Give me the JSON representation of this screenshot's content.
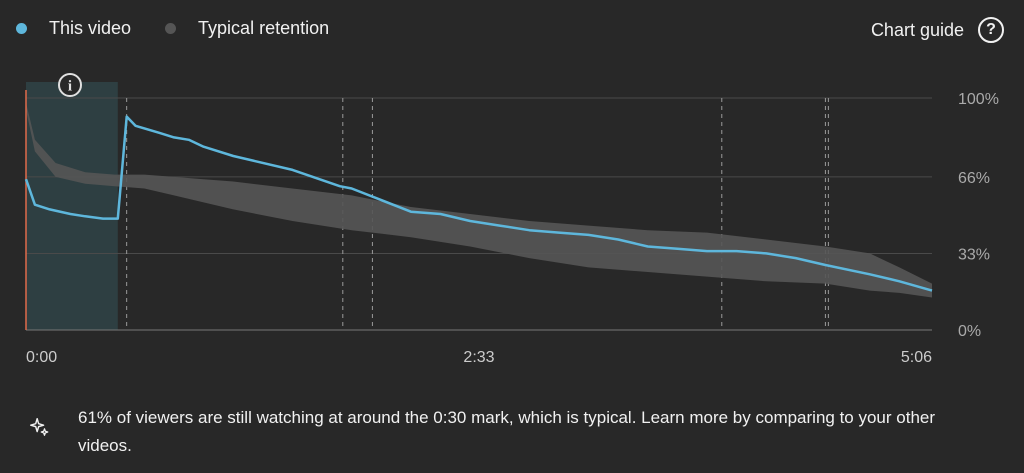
{
  "legend": {
    "this_video": {
      "label": "This video",
      "color": "#5eb7dc"
    },
    "typical": {
      "label": "Typical retention",
      "color": "#555555"
    }
  },
  "chart_guide_label": "Chart guide",
  "help_symbol": "?",
  "info_symbol": "i",
  "insight_text": "61% of viewers are still watching at around the 0:30 mark, which is typical. Learn more by comparing to your other videos.",
  "chart_data": {
    "type": "line",
    "duration_seconds": 306,
    "x_ticks": [
      {
        "t": 0,
        "label": "0:00"
      },
      {
        "t": 153,
        "label": "2:33"
      },
      {
        "t": 306,
        "label": "5:06"
      }
    ],
    "y_ticks": [
      {
        "v": 100,
        "label": "100%"
      },
      {
        "v": 66,
        "label": "66%"
      },
      {
        "v": 33,
        "label": "33%"
      },
      {
        "v": 0,
        "label": "0%"
      }
    ],
    "ylim": [
      0,
      100
    ],
    "highlight_range_seconds": [
      0,
      31
    ],
    "marker_seconds": [
      34,
      107,
      117,
      235,
      270,
      271
    ],
    "series": [
      {
        "name": "This video",
        "x": [
          0,
          3,
          8,
          15,
          20,
          26,
          31,
          34,
          37,
          45,
          50,
          55,
          60,
          70,
          90,
          106,
          110,
          120,
          130,
          140,
          150,
          160,
          170,
          180,
          190,
          200,
          210,
          220,
          230,
          240,
          250,
          260,
          270,
          285,
          295,
          306
        ],
        "y": [
          65,
          54,
          52,
          50,
          49,
          48,
          48,
          92,
          88,
          85,
          83,
          82,
          79,
          75,
          69,
          62,
          61,
          56,
          51,
          50,
          47,
          45,
          43,
          42,
          41,
          39,
          36,
          35,
          34,
          34,
          33,
          31,
          28,
          24,
          21,
          17
        ]
      },
      {
        "name": "Typical retention",
        "x": [
          0,
          3,
          10,
          20,
          30,
          40,
          50,
          60,
          70,
          90,
          110,
          130,
          150,
          170,
          190,
          210,
          230,
          250,
          270,
          285,
          295,
          306
        ],
        "upper": [
          98,
          82,
          72,
          68,
          67,
          67,
          66,
          65,
          64,
          61,
          58,
          53,
          50,
          47,
          45,
          43,
          42,
          39,
          36,
          33,
          27,
          20
        ],
        "lower": [
          95,
          77,
          66,
          63,
          62,
          61,
          58,
          55,
          52,
          47,
          43,
          40,
          36,
          31,
          27,
          25,
          23,
          21,
          20,
          17,
          16,
          14
        ]
      }
    ]
  }
}
